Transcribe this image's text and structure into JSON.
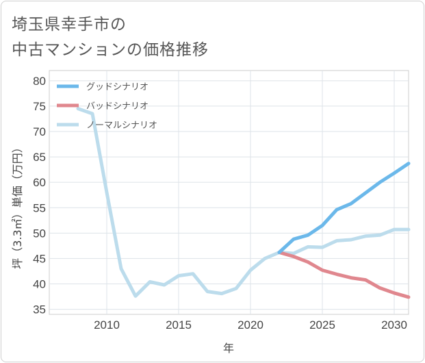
{
  "title": {
    "line1": "埼玉県幸手市の",
    "line2": "中古マンションの価格推移"
  },
  "chart_data": {
    "type": "line",
    "title": "埼玉県幸手市の中古マンションの価格推移",
    "xlabel": "年",
    "ylabel": "坪（3.3㎡）単価（万円）",
    "xlim": [
      2006,
      2031
    ],
    "ylim": [
      34,
      82
    ],
    "x_ticks": [
      2010,
      2015,
      2020,
      2025,
      2030
    ],
    "y_ticks": [
      35,
      40,
      45,
      50,
      55,
      60,
      65,
      70,
      75,
      80
    ],
    "grid": true,
    "legend_position": "top-left",
    "series": [
      {
        "name": "グッドシナリオ",
        "color": "#6bb8ea",
        "points": [
          [
            2022,
            46.2
          ],
          [
            2023,
            48.8
          ],
          [
            2024,
            49.6
          ],
          [
            2025,
            51.5
          ],
          [
            2026,
            54.6
          ],
          [
            2027,
            55.8
          ],
          [
            2028,
            57.9
          ],
          [
            2029,
            60.0
          ],
          [
            2030,
            61.8
          ],
          [
            2031,
            63.7
          ]
        ]
      },
      {
        "name": "バッドシナリオ",
        "color": "#e0878e",
        "points": [
          [
            2022,
            46.2
          ],
          [
            2023,
            45.4
          ],
          [
            2024,
            44.3
          ],
          [
            2025,
            42.7
          ],
          [
            2026,
            41.9
          ],
          [
            2027,
            41.2
          ],
          [
            2028,
            40.8
          ],
          [
            2029,
            39.2
          ],
          [
            2030,
            38.2
          ],
          [
            2031,
            37.4
          ]
        ]
      },
      {
        "name": "ノーマルシナリオ",
        "color": "#bcdcec",
        "points": [
          [
            2008,
            74.5
          ],
          [
            2009,
            73.5
          ],
          [
            2010,
            58.0
          ],
          [
            2011,
            43.0
          ],
          [
            2012,
            37.6
          ],
          [
            2013,
            40.4
          ],
          [
            2014,
            39.8
          ],
          [
            2015,
            41.6
          ],
          [
            2016,
            42.0
          ],
          [
            2017,
            38.5
          ],
          [
            2018,
            38.1
          ],
          [
            2019,
            39.1
          ],
          [
            2020,
            42.7
          ],
          [
            2021,
            45.0
          ],
          [
            2022,
            46.2
          ],
          [
            2023,
            46.0
          ],
          [
            2024,
            47.3
          ],
          [
            2025,
            47.2
          ],
          [
            2026,
            48.5
          ],
          [
            2027,
            48.7
          ],
          [
            2028,
            49.4
          ],
          [
            2029,
            49.6
          ],
          [
            2030,
            50.7
          ],
          [
            2031,
            50.7
          ]
        ]
      }
    ]
  }
}
